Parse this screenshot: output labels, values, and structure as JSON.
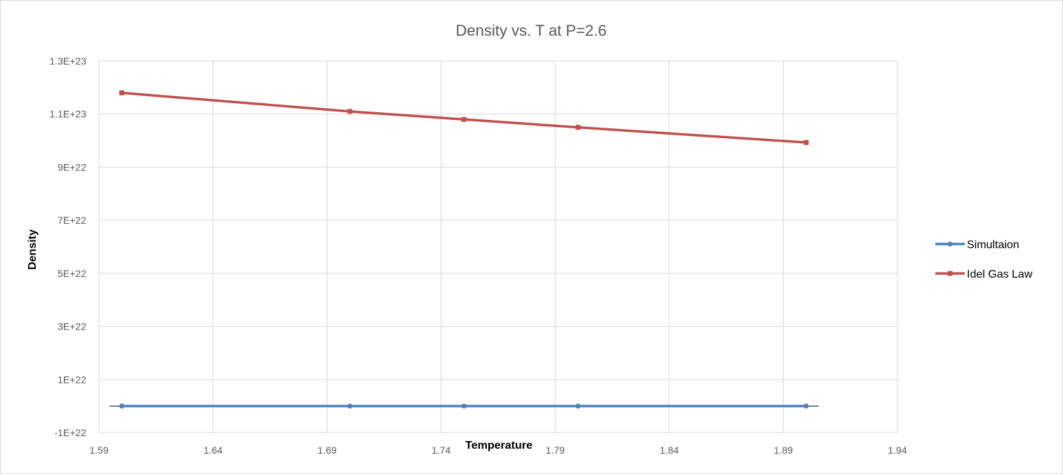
{
  "chart_data": {
    "type": "line",
    "title": "Density vs. T at P=2.6",
    "xlabel": "Temperature",
    "ylabel": "Density",
    "xlim": [
      1.59,
      1.94
    ],
    "ylim": [
      -1e+22,
      1.3e+23
    ],
    "x_ticks": [
      1.59,
      1.64,
      1.69,
      1.74,
      1.79,
      1.84,
      1.89,
      1.94
    ],
    "x_tick_labels": [
      "1.59",
      "1.64",
      "1.69",
      "1.74",
      "1.79",
      "1.84",
      "1.89",
      "1.94"
    ],
    "y_ticks": [
      -1e+22,
      1e+22,
      3e+22,
      5e+22,
      7e+22,
      9e+22,
      1.1e+23,
      1.3e+23
    ],
    "y_tick_labels": [
      "-1E+22",
      "1E+22",
      "3E+22",
      "5E+22",
      "7E+22",
      "9E+22",
      "1.1E+23",
      "1.3E+23"
    ],
    "grid": true,
    "legend_position": "right",
    "series": [
      {
        "name": "Simultaion",
        "color": "#4F81BD",
        "marker": "circle",
        "x": [
          1.6,
          1.7,
          1.75,
          1.8,
          1.9
        ],
        "y": [
          0,
          0,
          0,
          0,
          0
        ]
      },
      {
        "name": "Idel Gas Law",
        "color": "#C0504D",
        "marker": "square",
        "x": [
          1.6,
          1.7,
          1.75,
          1.8,
          1.9
        ],
        "y": [
          1.18e+23,
          1.11e+23,
          1.08e+23,
          1.05e+23,
          9.93e+22
        ]
      }
    ]
  }
}
